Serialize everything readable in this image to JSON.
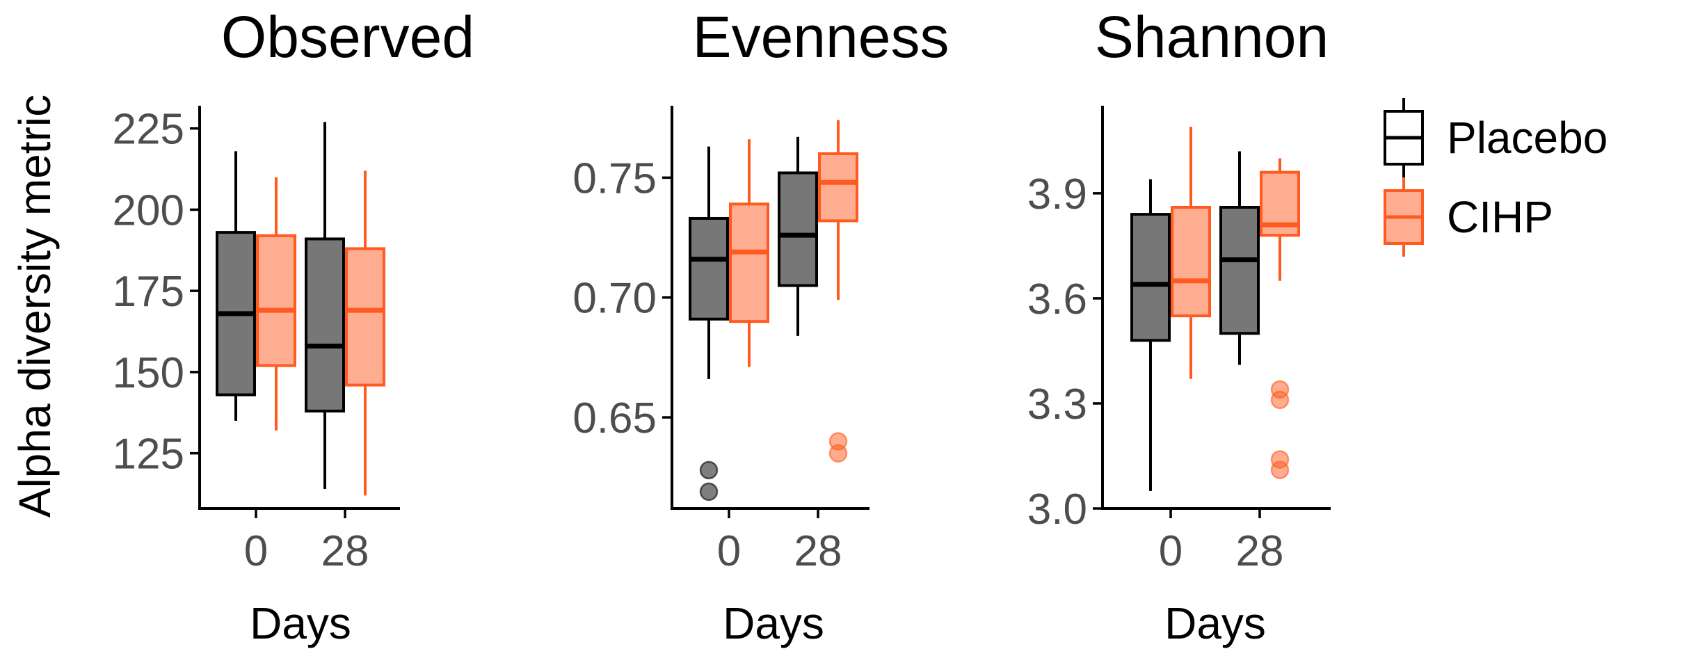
{
  "chart_data": {
    "type": "boxplot",
    "ylabel": "Alpha diversity metric",
    "legend": {
      "placement": "right",
      "items": [
        {
          "name": "Placebo",
          "stroke": "#000000",
          "fill": "#777777"
        },
        {
          "name": "CIHP",
          "stroke": "#ff5a1f",
          "fill": "#ffad91"
        }
      ]
    },
    "panels": [
      {
        "title": "Observed",
        "xlabel": "Days",
        "categories": [
          "0",
          "28"
        ],
        "ylim": [
          108,
          232
        ],
        "yticks": [
          125,
          150,
          175,
          200,
          225
        ],
        "ytick_labels": [
          "125",
          "150",
          "175",
          "200",
          "225"
        ],
        "boxes": [
          {
            "day": "0",
            "group": "Placebo",
            "min": 135,
            "q1": 143,
            "median": 168,
            "q3": 193,
            "max": 218,
            "outliers": []
          },
          {
            "day": "0",
            "group": "CIHP",
            "min": 132,
            "q1": 152,
            "median": 169,
            "q3": 192,
            "max": 210,
            "outliers": []
          },
          {
            "day": "28",
            "group": "Placebo",
            "min": 114,
            "q1": 138,
            "median": 158,
            "q3": 191,
            "max": 227,
            "outliers": []
          },
          {
            "day": "28",
            "group": "CIHP",
            "min": 112,
            "q1": 146,
            "median": 169,
            "q3": 188,
            "max": 212,
            "outliers": []
          }
        ]
      },
      {
        "title": "Evenness",
        "xlabel": "Days",
        "categories": [
          "0",
          "28"
        ],
        "ylim": [
          0.612,
          0.78
        ],
        "yticks": [
          0.65,
          0.7,
          0.75
        ],
        "ytick_labels": [
          "0.65",
          "0.70",
          "0.75"
        ],
        "boxes": [
          {
            "day": "0",
            "group": "Placebo",
            "min": 0.666,
            "q1": 0.691,
            "median": 0.716,
            "q3": 0.733,
            "max": 0.763,
            "outliers": [
              0.619,
              0.628
            ]
          },
          {
            "day": "0",
            "group": "CIHP",
            "min": 0.671,
            "q1": 0.69,
            "median": 0.719,
            "q3": 0.739,
            "max": 0.766,
            "outliers": []
          },
          {
            "day": "28",
            "group": "Placebo",
            "min": 0.684,
            "q1": 0.705,
            "median": 0.726,
            "q3": 0.752,
            "max": 0.767,
            "outliers": []
          },
          {
            "day": "28",
            "group": "CIHP",
            "min": 0.699,
            "q1": 0.732,
            "median": 0.748,
            "q3": 0.76,
            "max": 0.774,
            "outliers": [
              0.635,
              0.64
            ]
          }
        ]
      },
      {
        "title": "Shannon",
        "xlabel": "Days",
        "categories": [
          "0",
          "28"
        ],
        "ylim": [
          3.0,
          4.15
        ],
        "yticks": [
          3.0,
          3.3,
          3.6,
          3.9
        ],
        "ytick_labels": [
          "3.0",
          "3.3",
          "3.6",
          "3.9"
        ],
        "boxes": [
          {
            "day": "0",
            "group": "Placebo",
            "min": 3.05,
            "q1": 3.48,
            "median": 3.64,
            "q3": 3.84,
            "max": 3.94,
            "outliers": []
          },
          {
            "day": "0",
            "group": "CIHP",
            "min": 3.37,
            "q1": 3.55,
            "median": 3.65,
            "q3": 3.86,
            "max": 4.09,
            "outliers": []
          },
          {
            "day": "28",
            "group": "Placebo",
            "min": 3.41,
            "q1": 3.5,
            "median": 3.71,
            "q3": 3.86,
            "max": 4.02,
            "outliers": []
          },
          {
            "day": "28",
            "group": "CIHP",
            "min": 3.65,
            "q1": 3.78,
            "median": 3.81,
            "q3": 3.96,
            "max": 4.0,
            "outliers": [
              3.11,
              3.14,
              3.31,
              3.34
            ]
          }
        ]
      }
    ]
  }
}
